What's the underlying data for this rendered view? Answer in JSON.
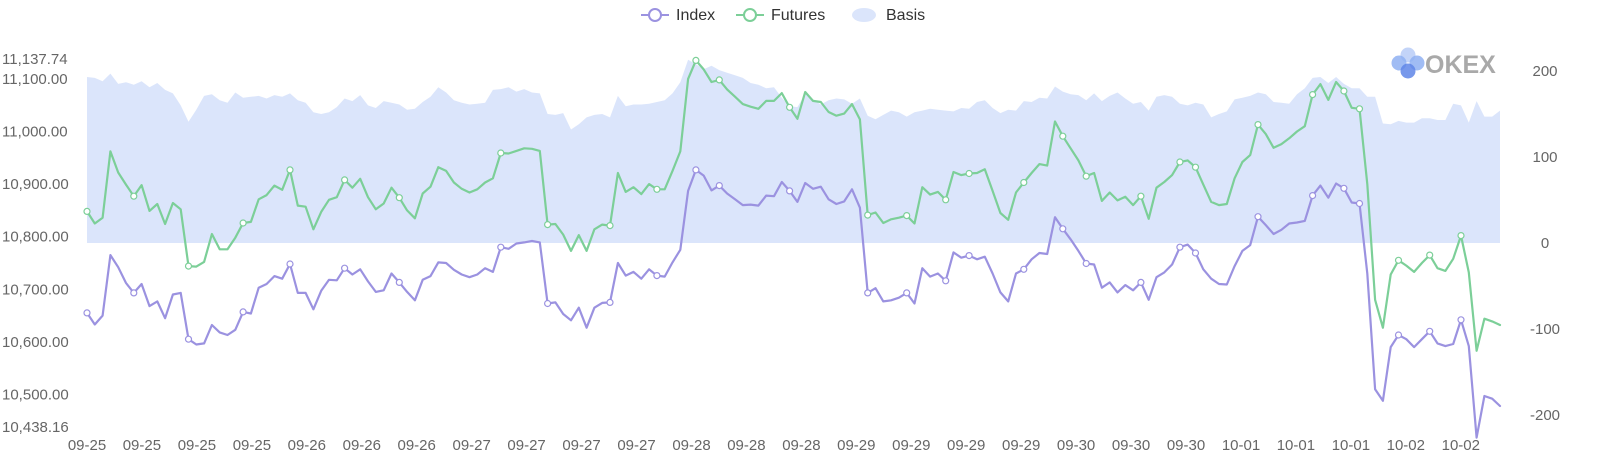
{
  "chart_data": {
    "type": "line",
    "logo": {
      "text": "OKEX",
      "colors": [
        "#8fb0f2",
        "#5f86e8",
        "#b9cdf7"
      ]
    },
    "legend": [
      {
        "name": "Index",
        "color": "#9b92e0",
        "marker": "line-circle"
      },
      {
        "name": "Futures",
        "color": "#7ccf98",
        "marker": "line-circle"
      },
      {
        "name": "Basis",
        "color": "#dbe5fb",
        "marker": "area"
      }
    ],
    "legend_position": "top-center",
    "x_tick_labels": [
      "09-25",
      "09-25",
      "09-25",
      "09-25",
      "09-26",
      "09-26",
      "09-26",
      "09-27",
      "09-27",
      "09-27",
      "09-27",
      "09-28",
      "09-28",
      "09-28",
      "09-29",
      "09-29",
      "09-29",
      "09-29",
      "09-30",
      "09-30",
      "09-30",
      "10-01",
      "10-01",
      "10-01",
      "10-02",
      "10-02"
    ],
    "y_left": {
      "min": 10438.16,
      "max": 11137.74,
      "ticks": [
        10500,
        10600,
        10700,
        10800,
        10900,
        11000,
        11100
      ],
      "tick_labels": [
        "10,500.00",
        "10,600.00",
        "10,700.00",
        "10,800.00",
        "10,900.00",
        "11,000.00",
        "11,100.00"
      ],
      "min_label": "10,438.16",
      "max_label": "11,137.74"
    },
    "y_right": {
      "min": -220,
      "max": 220,
      "ticks": [
        -200,
        -100,
        0,
        100,
        200
      ],
      "tick_labels": [
        "-200",
        "-100",
        "0",
        "100",
        "200"
      ]
    },
    "series": [
      {
        "name": "Index",
        "color": "#9b92e0",
        "axis": "left",
        "values": [
          10655,
          10633,
          10650,
          10765,
          10742,
          10712,
          10693,
          10710,
          10668,
          10677,
          10645,
          10690,
          10693,
          10605,
          10595,
          10597,
          10632,
          10618,
          10613,
          10623,
          10657,
          10654,
          10703,
          10710,
          10725,
          10720,
          10748,
          10693,
          10693,
          10662,
          10697,
          10718,
          10717,
          10740,
          10728,
          10738,
          10715,
          10695,
          10698,
          10730,
          10713,
          10695,
          10679,
          10718,
          10725,
          10751,
          10750,
          10737,
          10728,
          10723,
          10728,
          10740,
          10733,
          10780,
          10777,
          10787,
          10789,
          10792,
          10789,
          10673,
          10675,
          10653,
          10641,
          10665,
          10627,
          10665,
          10674,
          10675,
          10750,
          10726,
          10733,
          10720,
          10738,
          10726,
          10724,
          10751,
          10775,
          10887,
          10927,
          10916,
          10888,
          10897,
          10882,
          10871,
          10860,
          10861,
          10859,
          10878,
          10877,
          10904,
          10887,
          10866,
          10902,
          10891,
          10895,
          10871,
          10862,
          10867,
          10890,
          10855,
          10693,
          10702,
          10677,
          10679,
          10684,
          10693,
          10673,
          10740,
          10724,
          10730,
          10716,
          10770,
          10760,
          10764,
          10757,
          10762,
          10730,
          10694,
          10677,
          10730,
          10738,
          10757,
          10769,
          10767,
          10837,
          10815,
          10795,
          10773,
          10749,
          10747,
          10703,
          10713,
          10694,
          10708,
          10698,
          10713,
          10680,
          10723,
          10732,
          10747,
          10780,
          10785,
          10769,
          10738,
          10720,
          10710,
          10709,
          10744,
          10773,
          10784,
          10838,
          10822,
          10805,
          10813,
          10825,
          10827,
          10830,
          10878,
          10897,
          10874,
          10901,
          10892,
          10865,
          10863,
          10730,
          10510,
          10488,
          10590,
          10613,
          10605,
          10590,
          10605,
          10620,
          10597,
          10592,
          10596,
          10642,
          10592,
          10418,
          10497,
          10492,
          10478
        ]
      },
      {
        "name": "Futures",
        "color": "#7ccf98",
        "axis": "left",
        "values": [
          10848,
          10825,
          10836,
          10962,
          10922,
          10899,
          10877,
          10898,
          10849,
          10862,
          10824,
          10864,
          10852,
          10744,
          10743,
          10752,
          10805,
          10776,
          10776,
          10798,
          10826,
          10828,
          10871,
          10879,
          10897,
          10889,
          10927,
          10859,
          10857,
          10814,
          10847,
          10870,
          10875,
          10908,
          10893,
          10910,
          10875,
          10852,
          10863,
          10893,
          10874,
          10850,
          10835,
          10882,
          10895,
          10932,
          10925,
          10903,
          10891,
          10884,
          10890,
          10903,
          10911,
          10959,
          10958,
          10963,
          10968,
          10967,
          10963,
          10823,
          10824,
          10804,
          10773,
          10803,
          10773,
          10814,
          10823,
          10821,
          10921,
          10885,
          10894,
          10881,
          10900,
          10890,
          10890,
          10925,
          10962,
          11100,
          11135,
          11118,
          11094,
          11098,
          11080,
          11066,
          11052,
          11047,
          11043,
          11058,
          11058,
          11073,
          11046,
          11024,
          11075,
          11058,
          11056,
          11037,
          11030,
          11034,
          11052,
          11023,
          10841,
          10846,
          10826,
          10833,
          10836,
          10840,
          10825,
          10894,
          10880,
          10885,
          10870,
          10923,
          10917,
          10920,
          10921,
          10928,
          10887,
          10845,
          10832,
          10884,
          10903,
          10921,
          10938,
          10935,
          11019,
          10991,
          10968,
          10945,
          10915,
          10921,
          10868,
          10884,
          10869,
          10876,
          10860,
          10877,
          10834,
          10893,
          10904,
          10917,
          10942,
          10945,
          10932,
          10899,
          10866,
          10860,
          10862,
          10911,
          10942,
          10955,
          11013,
          10995,
          10969,
          10976,
          10987,
          11000,
          11010,
          11070,
          11090,
          11060,
          11094,
          11077,
          11045,
          11043,
          10900,
          10680,
          10627,
          10728,
          10755,
          10745,
          10733,
          10750,
          10765,
          10740,
          10735,
          10758,
          10802,
          10732,
          10583,
          10644,
          10639,
          10632
        ]
      },
      {
        "name": "Basis",
        "color": "#dbe5fb",
        "axis": "right",
        "type": "area",
        "values": [
          193,
          192,
          188,
          197,
          185,
          187,
          184,
          188,
          181,
          186,
          178,
          174,
          160,
          141,
          155,
          171,
          173,
          166,
          163,
          175,
          169,
          170,
          171,
          168,
          172,
          170,
          174,
          166,
          163,
          152,
          150,
          152,
          158,
          168,
          165,
          172,
          160,
          157,
          165,
          163,
          161,
          155,
          156,
          164,
          170,
          181,
          175,
          166,
          163,
          161,
          162,
          163,
          178,
          179,
          181,
          176,
          179,
          175,
          174,
          150,
          149,
          151,
          132,
          138,
          146,
          149,
          150,
          146,
          171,
          159,
          161,
          161,
          162,
          164,
          166,
          174,
          187,
          213,
          208,
          202,
          206,
          201,
          198,
          195,
          192,
          186,
          184,
          180,
          181,
          169,
          159,
          158,
          173,
          167,
          161,
          166,
          168,
          167,
          162,
          168,
          148,
          144,
          149,
          154,
          152,
          147,
          152,
          154,
          156,
          155,
          154,
          153,
          157,
          156,
          164,
          166,
          157,
          151,
          155,
          154,
          165,
          164,
          169,
          168,
          182,
          176,
          173,
          172,
          166,
          174,
          165,
          171,
          175,
          168,
          162,
          164,
          154,
          170,
          172,
          170,
          162,
          160,
          163,
          161,
          146,
          150,
          153,
          167,
          169,
          171,
          175,
          173,
          164,
          163,
          162,
          173,
          180,
          192,
          193,
          186,
          193,
          185,
          180,
          180,
          170,
          170,
          139,
          138,
          142,
          140,
          140,
          145,
          145,
          143,
          143,
          162,
          160,
          140,
          165,
          147,
          147,
          154
        ]
      }
    ],
    "marker_indices": [
      0,
      6,
      13,
      20,
      26,
      33,
      40,
      53,
      59,
      67,
      73,
      78,
      81,
      90,
      100,
      105,
      110,
      113,
      120,
      125,
      128,
      135,
      140,
      142,
      150,
      157,
      161,
      163,
      168,
      172,
      176
    ]
  }
}
